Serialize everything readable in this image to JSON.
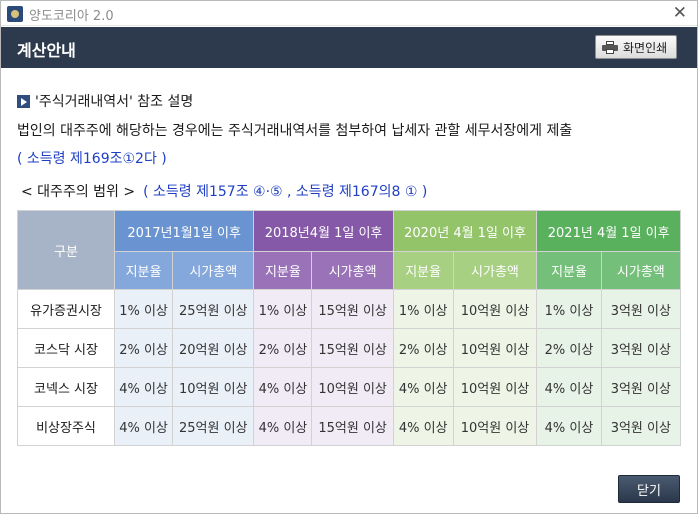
{
  "window": {
    "app_title": "양도코리아 2.0",
    "close_glyph": "✕"
  },
  "header": {
    "title": "계산안내",
    "print_label": "화면인쇄",
    "color": "#2d3a4d"
  },
  "reference": {
    "title": "'주식거래내역서' 참조 설명",
    "description": "법인의 대주주에 해당하는 경우에는 주식거래내역서를 첨부하여 납세자 관할 세무서장에게 제출",
    "law": "( 소득령 제169조①2다 )"
  },
  "range": {
    "label": "< 대주주의 범위 >",
    "law": "( 소득령 제157조 ④·⑤ , 소득령 제167의8 ① )"
  },
  "table": {
    "corner_label": "구분",
    "periods": [
      "2017년1월1일 이후",
      "2018년4월 1일 이후",
      "2020년 4월 1일 이후",
      "2021년 4월 1일 이후"
    ],
    "sub_headers": [
      "지분율",
      "시가총액"
    ],
    "rows": [
      {
        "label": "유가증권시장",
        "cells": [
          "1% 이상",
          "25억원 이상",
          "1% 이상",
          "15억원 이상",
          "1% 이상",
          "10억원 이상",
          "1% 이상",
          "3억원 이상"
        ]
      },
      {
        "label": "코스닥 시장",
        "cells": [
          "2% 이상",
          "20억원 이상",
          "2% 이상",
          "15억원 이상",
          "2% 이상",
          "10억원 이상",
          "2% 이상",
          "3억원 이상"
        ]
      },
      {
        "label": "코넥스 시장",
        "cells": [
          "4% 이상",
          "10억원 이상",
          "4% 이상",
          "10억원 이상",
          "4% 이상",
          "10억원 이상",
          "4% 이상",
          "3억원 이상"
        ]
      },
      {
        "label": "비상장주식",
        "cells": [
          "4% 이상",
          "25억원 이상",
          "4% 이상",
          "15억원 이상",
          "4% 이상",
          "10억원 이상",
          "4% 이상",
          "3억원 이상"
        ]
      }
    ],
    "period_colors": [
      "#6a94d1",
      "#8558a8",
      "#93c469",
      "#59b05d"
    ]
  },
  "footer": {
    "close_label": "닫기"
  }
}
